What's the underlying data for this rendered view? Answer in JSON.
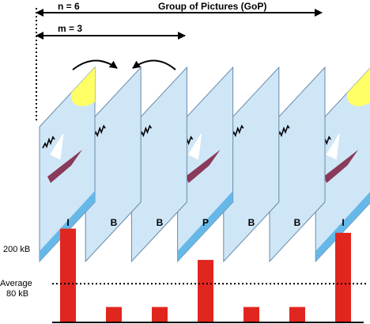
{
  "gop": {
    "n_label": "n = 6",
    "m_label": "m = 3",
    "title": "Group of Pictures (GoP)"
  },
  "frame_types": [
    "I",
    "B",
    "B",
    "P",
    "B",
    "B",
    "I"
  ],
  "chart_data": {
    "type": "bar",
    "categories": [
      "I",
      "B",
      "B",
      "P",
      "B",
      "B",
      "I"
    ],
    "values": [
      225,
      37,
      37,
      150,
      37,
      37,
      215
    ],
    "ylim": [
      0,
      230
    ],
    "y_tick_labels": [
      {
        "text": "200 kB",
        "value": 200
      },
      {
        "text": "Average",
        "value": 93
      },
      {
        "text": "80 kB",
        "value": 80
      }
    ],
    "reference_line": {
      "value": 93,
      "style": "dotted"
    },
    "grid": false,
    "bar_color": "#e0261e"
  },
  "colors": {
    "frame_fill": "#cfe6f7",
    "frame_stroke": "#6a8aa8",
    "sun": "#ffff66",
    "sea": "#66b8e8",
    "boat": "#8a3a5a",
    "bar": "#e0261e",
    "ink": "#000000"
  }
}
